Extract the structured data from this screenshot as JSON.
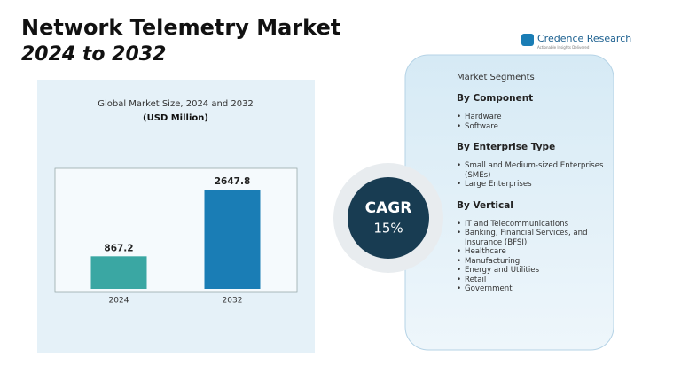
{
  "header": {
    "title": "Network Telemetry Market",
    "subtitle": "2024 to 2032"
  },
  "brand": {
    "name": "Credence Research",
    "tagline": "Actionable Insights Delivered"
  },
  "chart_data": {
    "type": "bar",
    "title": "Global Market Size, 2024 and 2032",
    "subtitle": "(USD Million)",
    "categories": [
      "2024",
      "2032"
    ],
    "values": [
      867.2,
      2647.8
    ],
    "colors": [
      "#3aa7a3",
      "#1a7db5"
    ]
  },
  "cagr": {
    "label": "CAGR",
    "value": "15%"
  },
  "segments": {
    "title": "Market Segments",
    "groups": [
      {
        "heading": "By Component",
        "items": [
          "Hardware",
          "Software"
        ]
      },
      {
        "heading": "By Enterprise Type",
        "items": [
          "Small and Medium-sized Enterprises (SMEs)",
          "Large Enterprises"
        ]
      },
      {
        "heading": "By Vertical",
        "items": [
          "IT and Telecommunications",
          "Banking, Financial Services, and Insurance (BFSI)",
          "Healthcare",
          "Manufacturing",
          "Energy and Utilities",
          "Retail",
          "Government"
        ]
      }
    ]
  }
}
